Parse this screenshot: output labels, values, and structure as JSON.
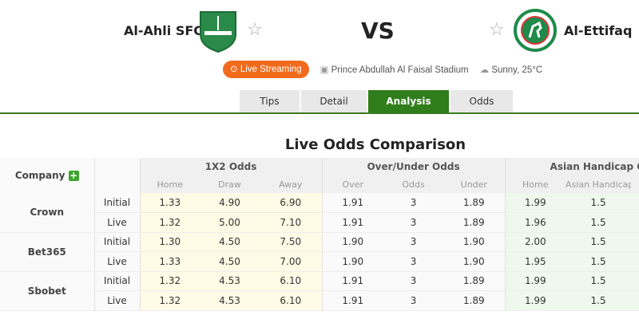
{
  "header": {
    "home_team": "Al-Ahli SFC",
    "away_team": "Al-Ettifaq",
    "vs": "VS",
    "live_streaming": "Live Streaming",
    "stadium": "Prince Abdullah Al Faisal Stadium",
    "weather": "Sunny, 25°C"
  },
  "tabs": [
    {
      "label": "Tips"
    },
    {
      "label": "Detail"
    },
    {
      "label": "Analysis",
      "active": true
    },
    {
      "label": "Odds"
    }
  ],
  "section_title": "Live Odds Comparison",
  "table": {
    "company_header": "Company",
    "groups": [
      "1X2 Odds",
      "Over/Under Odds",
      "Asian Handicap Odds"
    ],
    "subheaders": [
      "Home",
      "Draw",
      "Away",
      "Over",
      "Odds",
      "Under",
      "Home",
      "Asian Handicap"
    ],
    "rows": [
      {
        "company": "Crown",
        "initial": [
          "1.33",
          "4.90",
          "6.90",
          "1.91",
          "3",
          "1.89",
          "1.99",
          "1.5"
        ],
        "live": [
          "1.32",
          "5.00",
          "7.10",
          "1.91",
          "3",
          "1.89",
          "1.96",
          "1.5"
        ]
      },
      {
        "company": "Bet365",
        "initial": [
          "1.30",
          "4.50",
          "7.50",
          "1.90",
          "3",
          "1.90",
          "2.00",
          "1.5"
        ],
        "live": [
          "1.33",
          "4.50",
          "7.00",
          "1.90",
          "3",
          "1.90",
          "1.95",
          "1.5"
        ]
      },
      {
        "company": "Sbobet",
        "initial": [
          "1.32",
          "4.53",
          "6.10",
          "1.91",
          "3",
          "1.89",
          "1.99",
          "1.5"
        ],
        "live": [
          "1.32",
          "4.53",
          "6.10",
          "1.91",
          "3",
          "1.89",
          "1.99",
          "1.5"
        ]
      }
    ],
    "type_labels": {
      "initial": "Initial",
      "live": "Live"
    }
  },
  "colors": {
    "accent": "#2f7d1b",
    "live_button": "#f26b1d",
    "x12_bg": "#fffbe6",
    "asian_bg": "#eef8ec"
  }
}
